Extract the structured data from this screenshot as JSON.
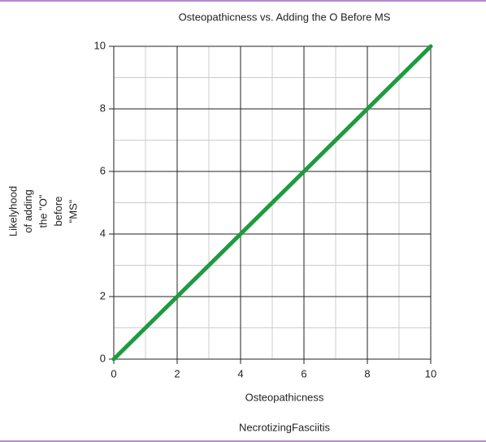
{
  "chart_data": {
    "type": "line",
    "title": "Osteopathicness vs. Adding the O Before MS",
    "xlabel": "Osteopathicness",
    "caption": "NecrotizingFasciitis",
    "ylabel_lines": [
      "Likelyhood",
      "of adding",
      "the \"O\"",
      "before",
      "\"MS\""
    ],
    "x": [
      0,
      10
    ],
    "series": [
      {
        "values": [
          0,
          10
        ],
        "color": "#1e9b3e"
      }
    ],
    "xlim": [
      0,
      10
    ],
    "ylim": [
      0,
      10
    ],
    "xticks": [
      0,
      2,
      4,
      6,
      8,
      10
    ],
    "yticks": [
      0,
      2,
      4,
      6,
      8,
      10
    ],
    "grid": true,
    "minor_grid": true
  }
}
